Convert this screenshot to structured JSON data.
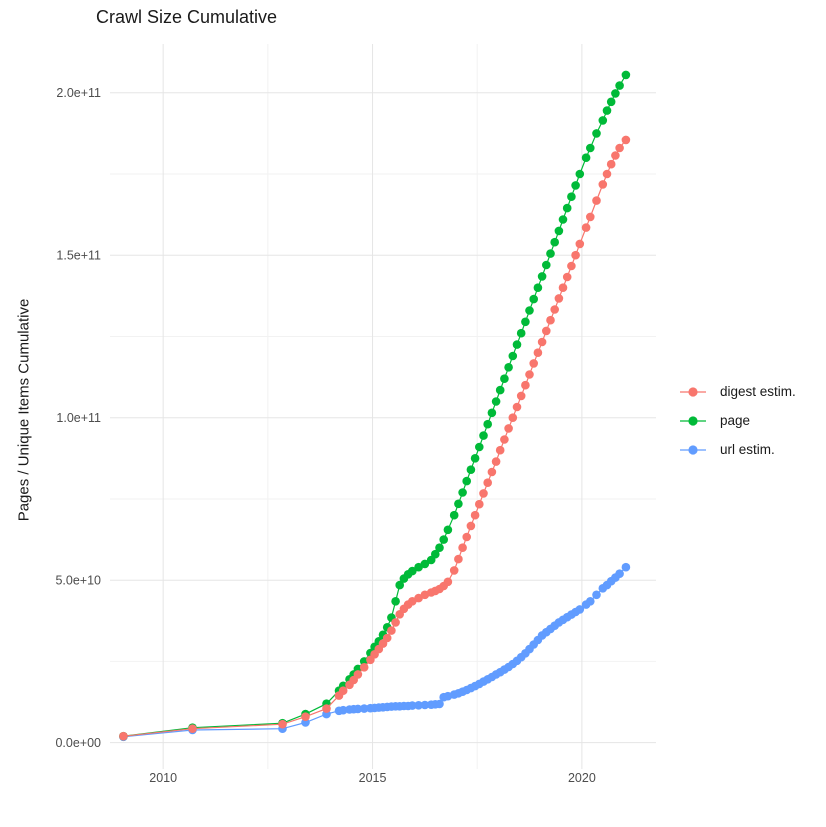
{
  "title": "Crawl Size Cumulative",
  "styles": {
    "background": "#ffffff",
    "axis_text_color": "#4d4d4d",
    "title_color": "#1a1a1a",
    "major_grid_color": "#e5e5e5",
    "minor_grid_color": "#f2f2f2"
  },
  "chart_data": {
    "type": "line",
    "title": "Crawl Size Cumulative",
    "xlabel": "",
    "ylabel": "Pages / Unique Items Cumulative",
    "value_unit": "1e9",
    "legend_position": "right",
    "grid": "on",
    "xlim": [
      2008.73,
      2021.77
    ],
    "ylim": [
      -8.1,
      215
    ],
    "x_ticks": [
      {
        "label": "2010",
        "value": 2010
      },
      {
        "label": "2015",
        "value": 2015
      },
      {
        "label": "2020",
        "value": 2020
      }
    ],
    "x_minor_gridlines": [
      2012.5,
      2017.5
    ],
    "y_ticks": [
      {
        "label": "0.0e+00",
        "value": 0
      },
      {
        "label": "5.0e+10",
        "value": 50
      },
      {
        "label": "1.0e+11",
        "value": 100
      },
      {
        "label": "1.5e+11",
        "value": 150
      },
      {
        "label": "2.0e+11",
        "value": 200
      }
    ],
    "y_minor_gridlines": [
      25,
      75,
      125,
      175
    ],
    "series": [
      {
        "name": "digest estim.",
        "color": "#F8766D",
        "points": [
          [
            2009.05,
            2.0
          ],
          [
            2010.7,
            4.3
          ],
          [
            2012.85,
            5.7
          ],
          [
            2013.4,
            8.0
          ],
          [
            2013.9,
            10.5
          ],
          [
            2014.2,
            14.5
          ],
          [
            2014.3,
            16.0
          ],
          [
            2014.45,
            17.8
          ],
          [
            2014.55,
            19.3
          ],
          [
            2014.65,
            21.0
          ],
          [
            2014.8,
            23.2
          ],
          [
            2014.95,
            25.5
          ],
          [
            2015.05,
            27.2
          ],
          [
            2015.15,
            28.8
          ],
          [
            2015.25,
            30.5
          ],
          [
            2015.35,
            32.2
          ],
          [
            2015.45,
            34.5
          ],
          [
            2015.55,
            37.0
          ],
          [
            2015.65,
            39.5
          ],
          [
            2015.75,
            41.2
          ],
          [
            2015.85,
            42.5
          ],
          [
            2015.95,
            43.5
          ],
          [
            2016.1,
            44.5
          ],
          [
            2016.25,
            45.5
          ],
          [
            2016.4,
            46.2
          ],
          [
            2016.5,
            46.7
          ],
          [
            2016.6,
            47.3
          ],
          [
            2016.7,
            48.2
          ],
          [
            2016.8,
            49.5
          ],
          [
            2016.95,
            53.0
          ],
          [
            2017.05,
            56.5
          ],
          [
            2017.15,
            60.0
          ],
          [
            2017.25,
            63.3
          ],
          [
            2017.35,
            66.7
          ],
          [
            2017.45,
            70.0
          ],
          [
            2017.55,
            73.4
          ],
          [
            2017.65,
            76.7
          ],
          [
            2017.75,
            80.0
          ],
          [
            2017.85,
            83.3
          ],
          [
            2017.95,
            86.5
          ],
          [
            2018.05,
            90.0
          ],
          [
            2018.15,
            93.3
          ],
          [
            2018.25,
            96.7
          ],
          [
            2018.35,
            100.0
          ],
          [
            2018.45,
            103.3
          ],
          [
            2018.55,
            106.7
          ],
          [
            2018.65,
            110.0
          ],
          [
            2018.75,
            113.3
          ],
          [
            2018.85,
            116.7
          ],
          [
            2018.95,
            120.0
          ],
          [
            2019.05,
            123.3
          ],
          [
            2019.15,
            126.7
          ],
          [
            2019.25,
            130.0
          ],
          [
            2019.35,
            133.3
          ],
          [
            2019.45,
            136.7
          ],
          [
            2019.55,
            140.0
          ],
          [
            2019.65,
            143.3
          ],
          [
            2019.75,
            146.7
          ],
          [
            2019.85,
            150.0
          ],
          [
            2019.95,
            153.5
          ],
          [
            2020.1,
            158.5
          ],
          [
            2020.2,
            161.8
          ],
          [
            2020.35,
            166.8
          ],
          [
            2020.5,
            171.8
          ],
          [
            2020.6,
            175.0
          ],
          [
            2020.7,
            178.0
          ],
          [
            2020.8,
            180.7
          ],
          [
            2020.9,
            183.0
          ],
          [
            2021.05,
            185.5
          ]
        ]
      },
      {
        "name": "page",
        "color": "#00BA38",
        "points": [
          [
            2009.05,
            2.0
          ],
          [
            2010.7,
            4.6
          ],
          [
            2012.85,
            6.0
          ],
          [
            2013.4,
            8.8
          ],
          [
            2013.9,
            12.0
          ],
          [
            2014.2,
            16.0
          ],
          [
            2014.3,
            17.5
          ],
          [
            2014.45,
            19.5
          ],
          [
            2014.55,
            21.0
          ],
          [
            2014.65,
            22.7
          ],
          [
            2014.8,
            25.0
          ],
          [
            2014.95,
            27.6
          ],
          [
            2015.05,
            29.5
          ],
          [
            2015.15,
            31.2
          ],
          [
            2015.25,
            33.2
          ],
          [
            2015.35,
            35.5
          ],
          [
            2015.45,
            38.5
          ],
          [
            2015.55,
            43.5
          ],
          [
            2015.65,
            48.5
          ],
          [
            2015.75,
            50.5
          ],
          [
            2015.85,
            51.8
          ],
          [
            2015.95,
            52.8
          ],
          [
            2016.1,
            54.0
          ],
          [
            2016.25,
            55.0
          ],
          [
            2016.4,
            56.2
          ],
          [
            2016.5,
            58.0
          ],
          [
            2016.6,
            60.0
          ],
          [
            2016.7,
            62.5
          ],
          [
            2016.8,
            65.5
          ],
          [
            2016.95,
            70.0
          ],
          [
            2017.05,
            73.5
          ],
          [
            2017.15,
            77.0
          ],
          [
            2017.25,
            80.5
          ],
          [
            2017.35,
            84.0
          ],
          [
            2017.45,
            87.5
          ],
          [
            2017.55,
            91.0
          ],
          [
            2017.65,
            94.5
          ],
          [
            2017.75,
            98.0
          ],
          [
            2017.85,
            101.5
          ],
          [
            2017.95,
            105.0
          ],
          [
            2018.05,
            108.5
          ],
          [
            2018.15,
            112.0
          ],
          [
            2018.25,
            115.5
          ],
          [
            2018.35,
            119.0
          ],
          [
            2018.45,
            122.5
          ],
          [
            2018.55,
            126.0
          ],
          [
            2018.65,
            129.5
          ],
          [
            2018.75,
            133.0
          ],
          [
            2018.85,
            136.5
          ],
          [
            2018.95,
            140.0
          ],
          [
            2019.05,
            143.5
          ],
          [
            2019.15,
            147.0
          ],
          [
            2019.25,
            150.5
          ],
          [
            2019.35,
            154.0
          ],
          [
            2019.45,
            157.5
          ],
          [
            2019.55,
            161.0
          ],
          [
            2019.65,
            164.5
          ],
          [
            2019.75,
            168.0
          ],
          [
            2019.85,
            171.5
          ],
          [
            2019.95,
            175.0
          ],
          [
            2020.1,
            180.0
          ],
          [
            2020.2,
            183.0
          ],
          [
            2020.35,
            187.5
          ],
          [
            2020.5,
            191.5
          ],
          [
            2020.6,
            194.5
          ],
          [
            2020.7,
            197.2
          ],
          [
            2020.8,
            199.8
          ],
          [
            2020.9,
            202.2
          ],
          [
            2021.05,
            205.5
          ]
        ]
      },
      {
        "name": "url estim.",
        "color": "#619CFF",
        "points": [
          [
            2009.05,
            1.8
          ],
          [
            2010.7,
            3.9
          ],
          [
            2012.85,
            4.3
          ],
          [
            2013.4,
            6.2
          ],
          [
            2013.9,
            8.8
          ],
          [
            2014.2,
            9.8
          ],
          [
            2014.3,
            10.0
          ],
          [
            2014.45,
            10.2
          ],
          [
            2014.55,
            10.3
          ],
          [
            2014.65,
            10.4
          ],
          [
            2014.8,
            10.5
          ],
          [
            2014.95,
            10.6
          ],
          [
            2015.05,
            10.7
          ],
          [
            2015.15,
            10.8
          ],
          [
            2015.25,
            10.9
          ],
          [
            2015.35,
            11.0
          ],
          [
            2015.45,
            11.1
          ],
          [
            2015.55,
            11.2
          ],
          [
            2015.65,
            11.2
          ],
          [
            2015.75,
            11.3
          ],
          [
            2015.85,
            11.3
          ],
          [
            2015.95,
            11.4
          ],
          [
            2016.1,
            11.5
          ],
          [
            2016.25,
            11.6
          ],
          [
            2016.4,
            11.7
          ],
          [
            2016.5,
            11.8
          ],
          [
            2016.6,
            11.9
          ],
          [
            2016.7,
            14.0
          ],
          [
            2016.8,
            14.3
          ],
          [
            2016.95,
            14.8
          ],
          [
            2017.05,
            15.2
          ],
          [
            2017.15,
            15.7
          ],
          [
            2017.25,
            16.2
          ],
          [
            2017.35,
            16.8
          ],
          [
            2017.45,
            17.4
          ],
          [
            2017.55,
            18.1
          ],
          [
            2017.65,
            18.8
          ],
          [
            2017.75,
            19.5
          ],
          [
            2017.85,
            20.2
          ],
          [
            2017.95,
            21.0
          ],
          [
            2018.05,
            21.7
          ],
          [
            2018.15,
            22.5
          ],
          [
            2018.25,
            23.3
          ],
          [
            2018.35,
            24.2
          ],
          [
            2018.45,
            25.2
          ],
          [
            2018.55,
            26.3
          ],
          [
            2018.65,
            27.5
          ],
          [
            2018.75,
            28.8
          ],
          [
            2018.85,
            30.2
          ],
          [
            2018.95,
            31.6
          ],
          [
            2019.05,
            33.0
          ],
          [
            2019.15,
            34.0
          ],
          [
            2019.25,
            35.0
          ],
          [
            2019.35,
            36.0
          ],
          [
            2019.45,
            37.0
          ],
          [
            2019.55,
            37.8
          ],
          [
            2019.65,
            38.6
          ],
          [
            2019.75,
            39.4
          ],
          [
            2019.85,
            40.2
          ],
          [
            2019.95,
            41.0
          ],
          [
            2020.1,
            42.5
          ],
          [
            2020.2,
            43.5
          ],
          [
            2020.35,
            45.5
          ],
          [
            2020.5,
            47.5
          ],
          [
            2020.6,
            48.5
          ],
          [
            2020.7,
            49.7
          ],
          [
            2020.8,
            50.8
          ],
          [
            2020.9,
            52.0
          ],
          [
            2021.05,
            54.0
          ]
        ]
      }
    ]
  }
}
